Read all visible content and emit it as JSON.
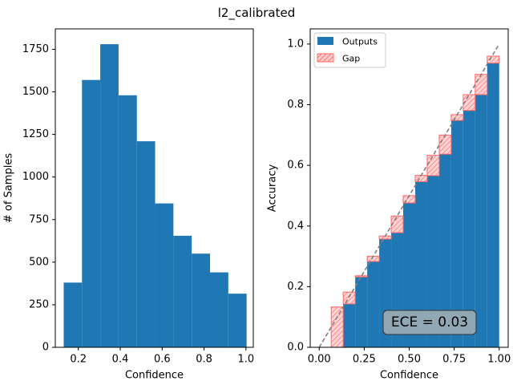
{
  "figure": {
    "title": "l2_calibrated"
  },
  "chart_data": [
    {
      "type": "bar",
      "subtype": "histogram",
      "xlabel": "Confidence",
      "ylabel": "# of Samples",
      "xlim": [
        0.09,
        1.035
      ],
      "ylim": [
        0,
        1870
      ],
      "xticks": [
        0.2,
        0.4,
        0.6,
        0.8,
        1.0
      ],
      "xtick_labels": [
        "0.2",
        "0.4",
        "0.6",
        "0.8",
        "1.0"
      ],
      "yticks": [
        0,
        250,
        500,
        750,
        1000,
        1250,
        1500,
        1750
      ],
      "ytick_labels": [
        "0",
        "250",
        "500",
        "750",
        "1000",
        "1250",
        "1500",
        "1750"
      ],
      "bin_edges": [
        0.13,
        0.2173,
        0.3046,
        0.3919,
        0.4792,
        0.5665,
        0.6538,
        0.7411,
        0.8284,
        0.9157,
        1.003
      ],
      "counts": [
        380,
        1570,
        1780,
        1480,
        1210,
        845,
        655,
        550,
        440,
        315
      ],
      "colors": {
        "bar": "#1f77b4"
      },
      "grid": false
    },
    {
      "type": "bar",
      "subtype": "reliability_diagram",
      "xlabel": "Confidence",
      "ylabel": "Accuracy",
      "xlim": [
        -0.05,
        1.05
      ],
      "ylim": [
        0,
        1.05
      ],
      "xticks": [
        0.0,
        0.25,
        0.5,
        0.75,
        1.0
      ],
      "xtick_labels": [
        "0.00",
        "0.25",
        "0.50",
        "0.75",
        "1.00"
      ],
      "yticks": [
        0.0,
        0.2,
        0.4,
        0.6,
        0.8,
        1.0
      ],
      "ytick_labels": [
        "0.0",
        "0.2",
        "0.4",
        "0.6",
        "0.8",
        "1.0"
      ],
      "bin_width": 0.0667,
      "bin_lefts": [
        0.0,
        0.0667,
        0.1333,
        0.2,
        0.2667,
        0.3333,
        0.4,
        0.4667,
        0.5333,
        0.6,
        0.6667,
        0.7333,
        0.8,
        0.8667,
        0.9333
      ],
      "series": [
        {
          "name": "Outputs",
          "values": [
            0.0,
            0.0,
            0.143,
            0.232,
            0.283,
            0.357,
            0.378,
            0.476,
            0.546,
            0.566,
            0.637,
            0.748,
            0.781,
            0.833,
            0.937
          ]
        },
        {
          "name": "Gap",
          "values": [
            0.0,
            0.133,
            0.182,
            0.236,
            0.3,
            0.367,
            0.433,
            0.5,
            0.567,
            0.633,
            0.7,
            0.767,
            0.833,
            0.9,
            0.96
          ]
        }
      ],
      "diagonal": {
        "style": "dashed",
        "color": "#808080",
        "from": [
          0,
          0
        ],
        "to": [
          1,
          1
        ]
      },
      "legend": {
        "position": "top-left",
        "entries": [
          "Outputs",
          "Gap"
        ]
      },
      "annotation": {
        "text": "ECE = 0.03",
        "position": "bottom-right"
      },
      "colors": {
        "outputs": "#1f77b4",
        "gap_fill": "#ffcccc",
        "gap_edge": "#ff6666",
        "annotation_box": "#8fa8b3"
      },
      "grid": false
    }
  ]
}
